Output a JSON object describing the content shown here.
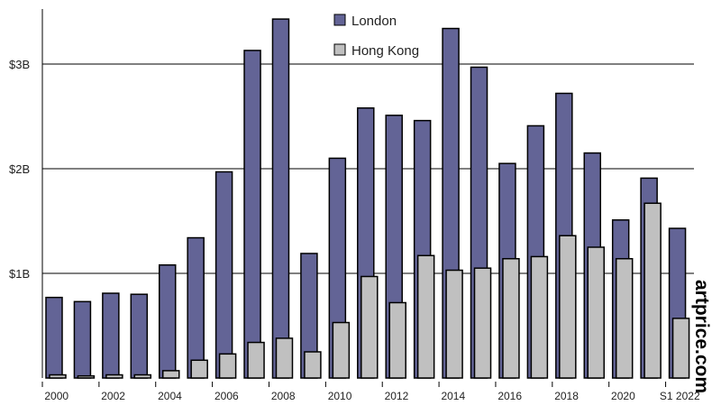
{
  "chart_data": {
    "type": "bar",
    "title": "",
    "xlabel": "",
    "ylabel": "",
    "ylim": [
      0,
      3.6
    ],
    "y_unit": "billion USD",
    "y_ticks": [
      {
        "value": 1,
        "label": "$1B"
      },
      {
        "value": 2,
        "label": "$2B"
      },
      {
        "value": 3,
        "label": "$3B"
      }
    ],
    "grid": true,
    "legend_position": "top-center",
    "categories": [
      "2000",
      "2001",
      "2002",
      "2003",
      "2004",
      "2005",
      "2006",
      "2007",
      "2008",
      "2009",
      "2010",
      "2011",
      "2012",
      "2013",
      "2014",
      "2015",
      "2016",
      "2017",
      "2018",
      "2019",
      "2020",
      "2021",
      "S1 2022"
    ],
    "x_tick_labels": [
      "2000",
      "2002",
      "2004",
      "2006",
      "2008",
      "2010",
      "2012",
      "2014",
      "2016",
      "2018",
      "2020",
      "S1 2022"
    ],
    "series": [
      {
        "name": "London",
        "color": "#636496",
        "values": [
          0.77,
          0.73,
          0.81,
          0.8,
          1.08,
          1.34,
          1.97,
          3.13,
          3.43,
          1.19,
          2.1,
          2.58,
          2.51,
          2.46,
          3.34,
          2.97,
          2.05,
          2.41,
          2.72,
          2.15,
          1.51,
          1.91,
          1.43
        ]
      },
      {
        "name": "Hong Kong",
        "color": "#c0c0c0",
        "values": [
          0.03,
          0.02,
          0.03,
          0.03,
          0.07,
          0.17,
          0.23,
          0.34,
          0.38,
          0.25,
          0.53,
          0.97,
          0.72,
          1.17,
          1.03,
          1.05,
          1.14,
          1.16,
          1.36,
          1.25,
          1.14,
          1.67,
          0.57
        ]
      }
    ],
    "watermark": "artprice.com"
  }
}
